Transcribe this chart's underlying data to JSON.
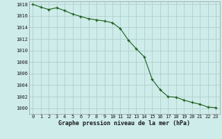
{
  "x": [
    0,
    1,
    2,
    3,
    4,
    5,
    6,
    7,
    8,
    9,
    10,
    11,
    12,
    13,
    14,
    15,
    16,
    17,
    18,
    19,
    20,
    21,
    22,
    23
  ],
  "y": [
    1018.0,
    1017.5,
    1017.1,
    1017.4,
    1016.9,
    1016.3,
    1015.9,
    1015.5,
    1015.3,
    1015.1,
    1014.8,
    1013.8,
    1011.8,
    1010.3,
    1008.9,
    1005.0,
    1003.2,
    1002.0,
    1001.9,
    1001.4,
    1001.0,
    1000.7,
    1000.2,
    1000.1
  ],
  "bg_color": "#ceecea",
  "grid_color": "#b0d0cc",
  "line_color": "#1a5c1a",
  "marker_color": "#1a5c1a",
  "ylabel_values": [
    1000,
    1002,
    1004,
    1006,
    1008,
    1010,
    1012,
    1014,
    1016,
    1018
  ],
  "xlabel": "Graphe pression niveau de la mer (hPa)",
  "ylim": [
    999.0,
    1018.5
  ],
  "xlim": [
    -0.5,
    23.5
  ],
  "tick_fontsize": 5.0,
  "xlabel_fontsize": 6.0
}
